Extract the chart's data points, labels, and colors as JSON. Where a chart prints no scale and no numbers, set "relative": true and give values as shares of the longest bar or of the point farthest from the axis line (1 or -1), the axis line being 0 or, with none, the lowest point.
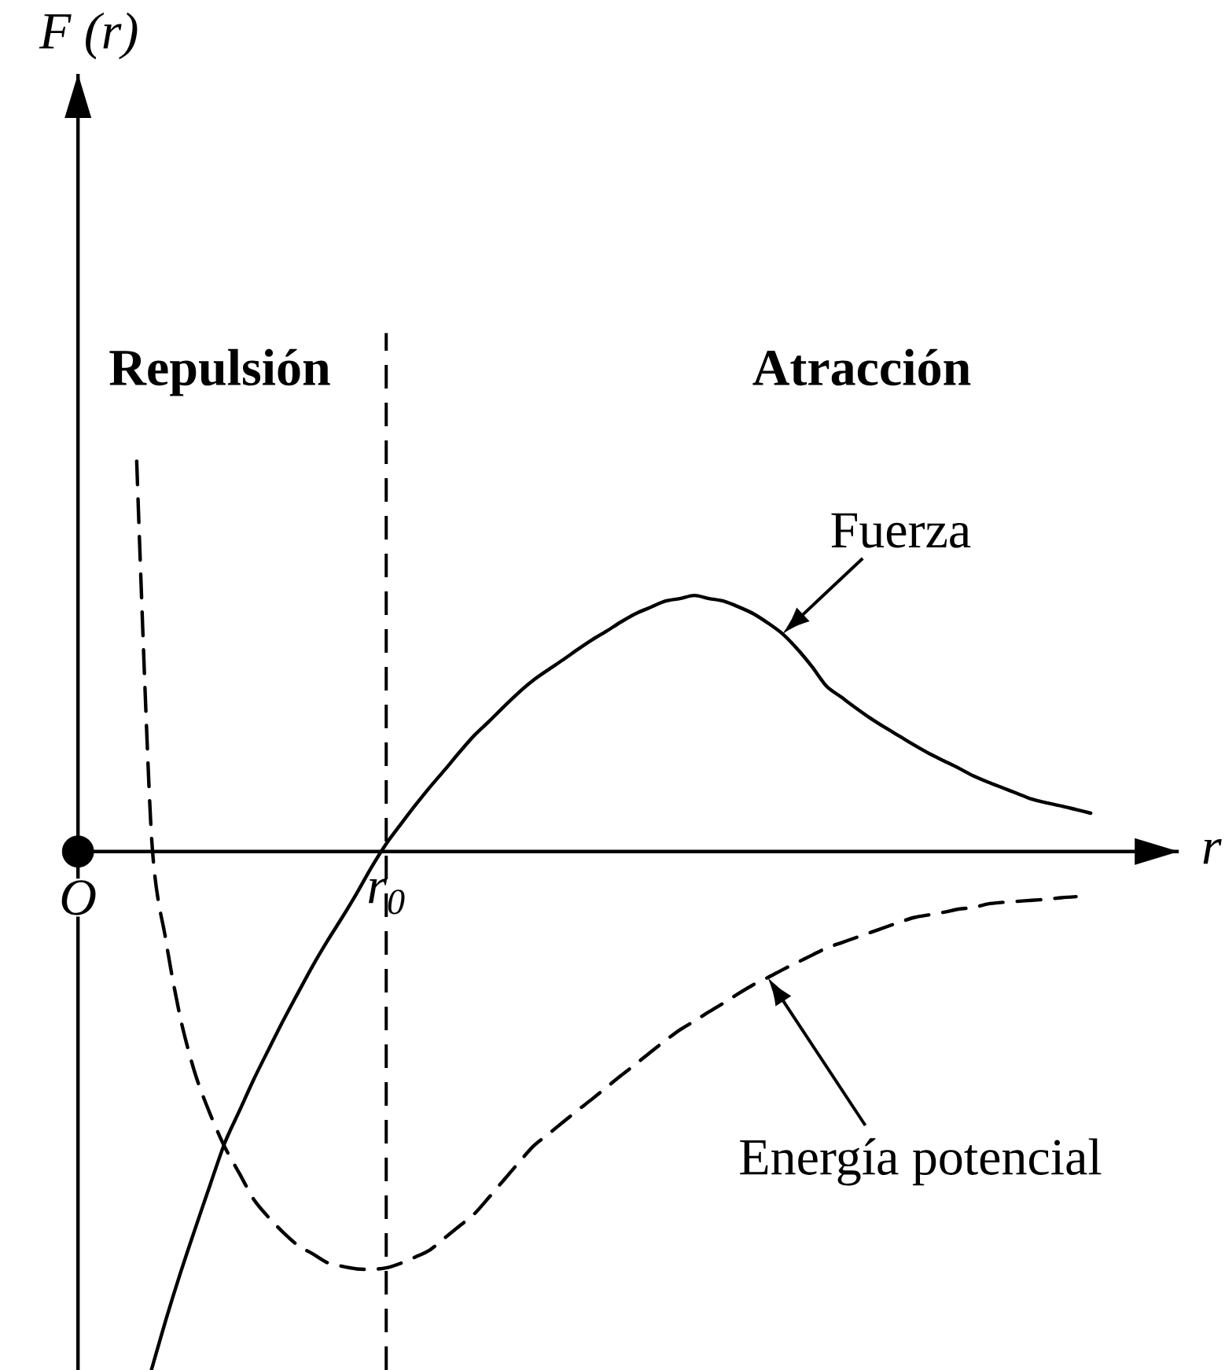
{
  "chart_data": {
    "type": "line",
    "relative": true,
    "xlabel": "r",
    "categories": [
      "O",
      null,
      null,
      null,
      null,
      null,
      null,
      null,
      null,
      null,
      null,
      null,
      null,
      null,
      null,
      null,
      null,
      null,
      null,
      null,
      null,
      "r$_{0}$",
      null,
      null,
      null,
      null,
      null,
      null,
      null,
      null,
      null,
      null,
      null,
      null,
      null,
      null,
      null,
      null,
      null,
      null,
      null,
      null,
      null,
      null,
      null,
      null,
      null,
      null,
      null,
      null,
      null,
      null,
      null,
      null,
      null,
      null,
      null,
      null,
      null,
      null,
      null,
      null,
      null,
      null,
      null,
      null,
      null,
      null,
      null,
      null,
      null,
      null,
      null,
      null,
      null
    ],
    "series": [
      {
        "name": "Fuerza",
        "color": "#000000",
        "line_style": "solid",
        "values": [
          null,
          null,
          null,
          null,
          null,
          -1.0,
          -0.902,
          -0.811,
          -0.726,
          -0.643,
          -0.562,
          -0.5,
          -0.438,
          -0.381,
          -0.325,
          -0.272,
          -0.22,
          -0.172,
          -0.127,
          -0.08,
          -0.03,
          0.015,
          0.053,
          0.09,
          0.125,
          0.158,
          0.192,
          0.224,
          0.251,
          0.279,
          0.306,
          0.33,
          0.35,
          0.369,
          0.389,
          0.408,
          0.425,
          0.443,
          0.459,
          0.471,
          0.483,
          0.488,
          0.494,
          0.488,
          0.483,
          0.472,
          0.459,
          0.441,
          0.42,
          0.391,
          0.357,
          0.319,
          0.298,
          0.277,
          0.257,
          0.239,
          0.222,
          0.205,
          0.189,
          0.175,
          0.161,
          0.146,
          0.134,
          0.123,
          0.112,
          0.101,
          0.094,
          0.088,
          0.081,
          0.074,
          null,
          null,
          null,
          null,
          null
        ]
      },
      {
        "name": "Energía potencial",
        "color": "#000000",
        "line_style": "dashed",
        "values": [
          null,
          null,
          null,
          null,
          0.753,
          0.033,
          -0.173,
          -0.324,
          -0.43,
          -0.506,
          -0.57,
          -0.621,
          -0.672,
          -0.706,
          -0.735,
          -0.76,
          -0.776,
          -0.793,
          -0.8,
          -0.805,
          -0.806,
          -0.803,
          -0.794,
          -0.782,
          -0.768,
          -0.745,
          -0.722,
          -0.699,
          -0.667,
          -0.634,
          -0.601,
          -0.569,
          -0.546,
          -0.523,
          -0.5,
          -0.478,
          -0.455,
          -0.432,
          -0.41,
          -0.387,
          -0.365,
          -0.344,
          -0.327,
          -0.309,
          -0.292,
          -0.274,
          -0.257,
          -0.243,
          -0.228,
          -0.214,
          -0.2,
          -0.186,
          -0.176,
          -0.166,
          -0.156,
          -0.146,
          -0.136,
          -0.127,
          -0.122,
          -0.117,
          -0.111,
          -0.108,
          -0.101,
          -0.098,
          -0.096,
          -0.094,
          -0.092,
          -0.089,
          -0.087,
          null,
          null,
          null,
          null,
          null,
          null
        ]
      },
      {
        "type": "scatter",
        "marker": "circle",
        "color": "#000000",
        "values": [
          0,
          null,
          null,
          null,
          null,
          null,
          null,
          null,
          null,
          null,
          null,
          null,
          null,
          null,
          null,
          null,
          null,
          null,
          null,
          null,
          null,
          null,
          null,
          null,
          null,
          null,
          null,
          null,
          null,
          null,
          null,
          null,
          null,
          null,
          null,
          null,
          null,
          null,
          null,
          null,
          null,
          null,
          null,
          null,
          null,
          null,
          null,
          null,
          null,
          null,
          null,
          null,
          null,
          null,
          null,
          null,
          null,
          null,
          null,
          null,
          null,
          null,
          null,
          null,
          null,
          null,
          null,
          null,
          null,
          null,
          null,
          null,
          null,
          null,
          null
        ]
      }
    ],
    "ref_lines": [
      {
        "axis": "x",
        "value": "r$_{0}$",
        "line_style": "dashed",
        "color": "#000000"
      }
    ],
    "annotations": [
      "F (r)",
      "Repulsión",
      "Atracción"
    ]
  }
}
